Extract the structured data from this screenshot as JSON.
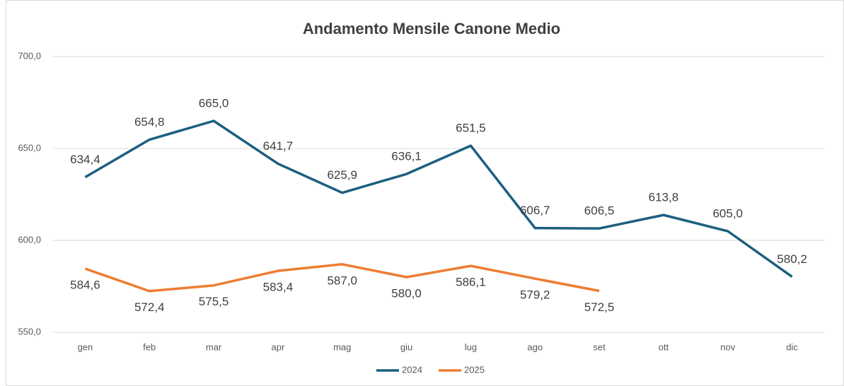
{
  "chart_data": {
    "type": "line",
    "title": "Andamento Mensile Canone Medio",
    "categories": [
      "gen",
      "feb",
      "mar",
      "apr",
      "mag",
      "giu",
      "lug",
      "ago",
      "set",
      "ott",
      "nov",
      "dic"
    ],
    "series": [
      {
        "name": "2024",
        "color": "#1c5f80",
        "values": [
          634.4,
          654.8,
          665.0,
          641.7,
          625.9,
          636.1,
          651.5,
          606.7,
          606.5,
          613.8,
          605.0,
          580.2
        ],
        "value_labels": [
          "634,4",
          "654,8",
          "665,0",
          "641,7",
          "625,9",
          "636,1",
          "651,5",
          "606,7",
          "606,5",
          "613,8",
          "605,0",
          "580,2"
        ]
      },
      {
        "name": "2025",
        "color": "#ed7d31",
        "values": [
          584.6,
          572.4,
          575.5,
          583.4,
          587.0,
          580.0,
          586.1,
          579.2,
          572.5,
          null,
          null,
          null
        ],
        "value_labels": [
          "584,6",
          "572,4",
          "575,5",
          "583,4",
          "587,0",
          "580,0",
          "586,1",
          "579,2",
          "572,5",
          null,
          null,
          null
        ]
      }
    ],
    "ylim": [
      550,
      700
    ],
    "yticks": [
      {
        "value": 550,
        "label": "550,0"
      },
      {
        "value": 600,
        "label": "600,0"
      },
      {
        "value": 650,
        "label": "650,0"
      },
      {
        "value": 700,
        "label": "700,0"
      }
    ],
    "grid": true,
    "legend": "bottom"
  }
}
